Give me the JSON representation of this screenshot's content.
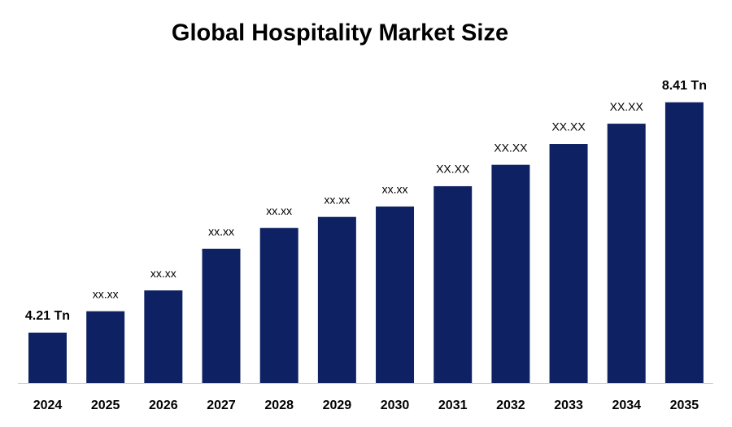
{
  "chart_data": {
    "type": "bar",
    "title": "Global Hospitality Market Size",
    "categories": [
      "2024",
      "2025",
      "2026",
      "2027",
      "2028",
      "2029",
      "2030",
      "2031",
      "2032",
      "2033",
      "2034",
      "2035"
    ],
    "values": [
      4.21,
      4.6,
      4.98,
      5.74,
      6.12,
      6.32,
      6.51,
      6.88,
      7.27,
      7.65,
      8.02,
      8.41
    ],
    "value_labels": [
      "4.21 Tn",
      "xx.xx",
      "xx.xx",
      "xx.xx",
      "xx.xx",
      "xx.xx",
      "xx.xx",
      "XX.XX",
      "XX.XX",
      "XX.XX",
      "XX.XX",
      "8.41 Tn"
    ],
    "color": "#0d2163",
    "ylim": [
      3.29,
      9.0
    ]
  }
}
